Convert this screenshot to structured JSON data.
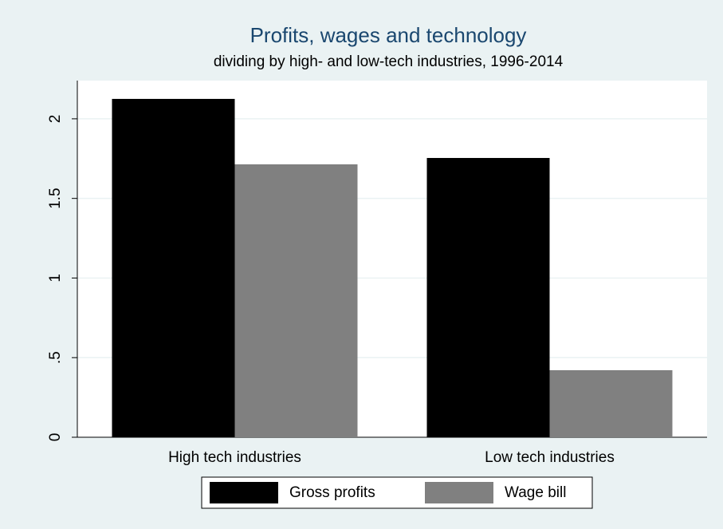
{
  "chart_data": {
    "type": "bar",
    "title": "Profits, wages and technology",
    "subtitle": "dividing by high- and low-tech industries, 1996-2014",
    "categories": [
      "High tech industries",
      "Low tech industries"
    ],
    "series": [
      {
        "name": "Gross profits",
        "color": "#000000",
        "values": [
          2.125,
          1.754
        ]
      },
      {
        "name": "Wage bill",
        "color": "#808080",
        "values": [
          1.714,
          0.421
        ]
      }
    ],
    "ylim": [
      0,
      2.24
    ],
    "yticks": [
      0,
      {
        "value": 0.5,
        "label": ".5"
      },
      1,
      1.5,
      2
    ],
    "grid": true,
    "legend": "bottom"
  }
}
